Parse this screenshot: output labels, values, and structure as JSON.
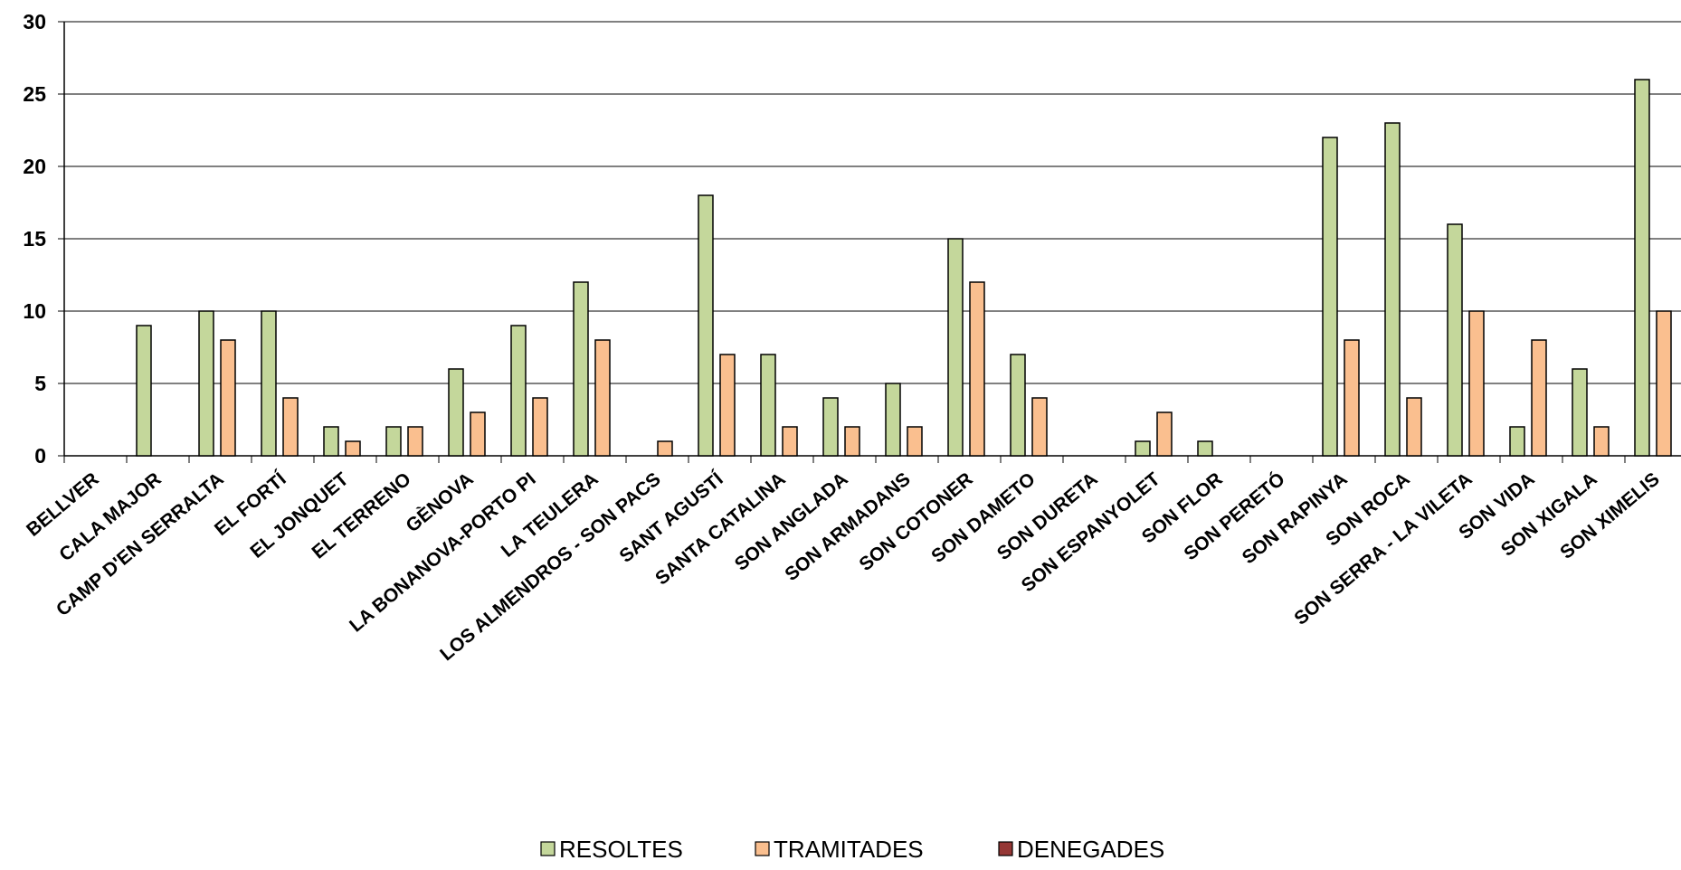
{
  "chart_data": {
    "type": "bar",
    "categories": [
      "BELLVER",
      "CALA MAJOR",
      "CAMP D'EN SERRALTA",
      "EL FORTÍ",
      "EL JONQUET",
      "EL TERRENO",
      "GÈNOVA",
      "LA BONANOVA-PORTO PI",
      "LA TEULERA",
      "LOS ALMENDROS - SON PACS",
      "SANT AGUSTÍ",
      "SANTA CATALINA",
      "SON ANGLADA",
      "SON ARMADANS",
      "SON COTONER",
      "SON DAMETO",
      "SON DURETA",
      "SON ESPANYOLET",
      "SON FLOR",
      "SON PERETÓ",
      "SON RAPINYA",
      "SON ROCA",
      "SON SERRA - LA VILETA",
      "SON VIDA",
      "SON XIGALA",
      "SON XIMELIS"
    ],
    "series": [
      {
        "name": "RESOLTES",
        "color": "#c4d79b",
        "values": [
          0,
          9,
          10,
          10,
          2,
          2,
          6,
          9,
          12,
          0,
          18,
          7,
          4,
          5,
          15,
          7,
          0,
          1,
          1,
          0,
          22,
          23,
          16,
          2,
          6,
          26
        ]
      },
      {
        "name": "TRAMITADES",
        "color": "#fabf8f",
        "values": [
          0,
          0,
          8,
          4,
          1,
          2,
          3,
          4,
          8,
          1,
          7,
          2,
          2,
          2,
          12,
          4,
          0,
          3,
          0,
          0,
          8,
          4,
          10,
          8,
          2,
          10
        ]
      },
      {
        "name": "DENEGADES",
        "color": "#953735",
        "values": [
          0,
          0,
          0,
          0,
          0,
          0,
          0,
          0,
          0,
          0,
          0,
          0,
          0,
          0,
          0,
          0,
          0,
          0,
          0,
          0,
          0,
          0,
          0,
          0,
          0,
          0
        ]
      }
    ],
    "ylim": [
      0,
      30
    ],
    "yticks": [
      0,
      5,
      10,
      15,
      20,
      25,
      30
    ],
    "grid": true,
    "legend_position": "bottom",
    "title": "",
    "xlabel": "",
    "ylabel": ""
  }
}
